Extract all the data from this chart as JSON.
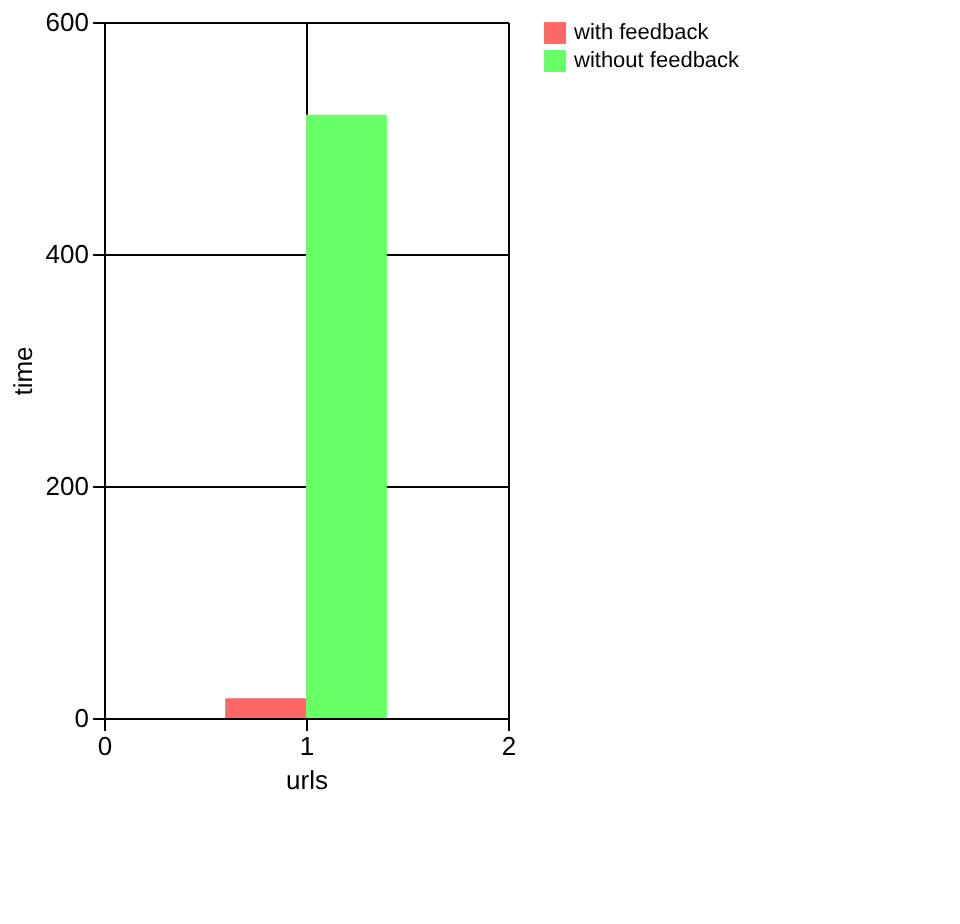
{
  "chart_data": {
    "type": "bar",
    "xlabel": "urls",
    "ylabel": "time",
    "x": [
      1
    ],
    "series": [
      {
        "name": "with feedback",
        "color": "#ff6666",
        "values": [
          17
        ]
      },
      {
        "name": "without feedback",
        "color": "#66ff66",
        "values": [
          520
        ]
      }
    ],
    "xlim": [
      0,
      2
    ],
    "xticks": [
      0,
      1,
      2
    ],
    "ylim": [
      0,
      600
    ],
    "yticks": [
      0,
      200,
      400,
      600
    ],
    "grid": true,
    "legend": "top right"
  }
}
